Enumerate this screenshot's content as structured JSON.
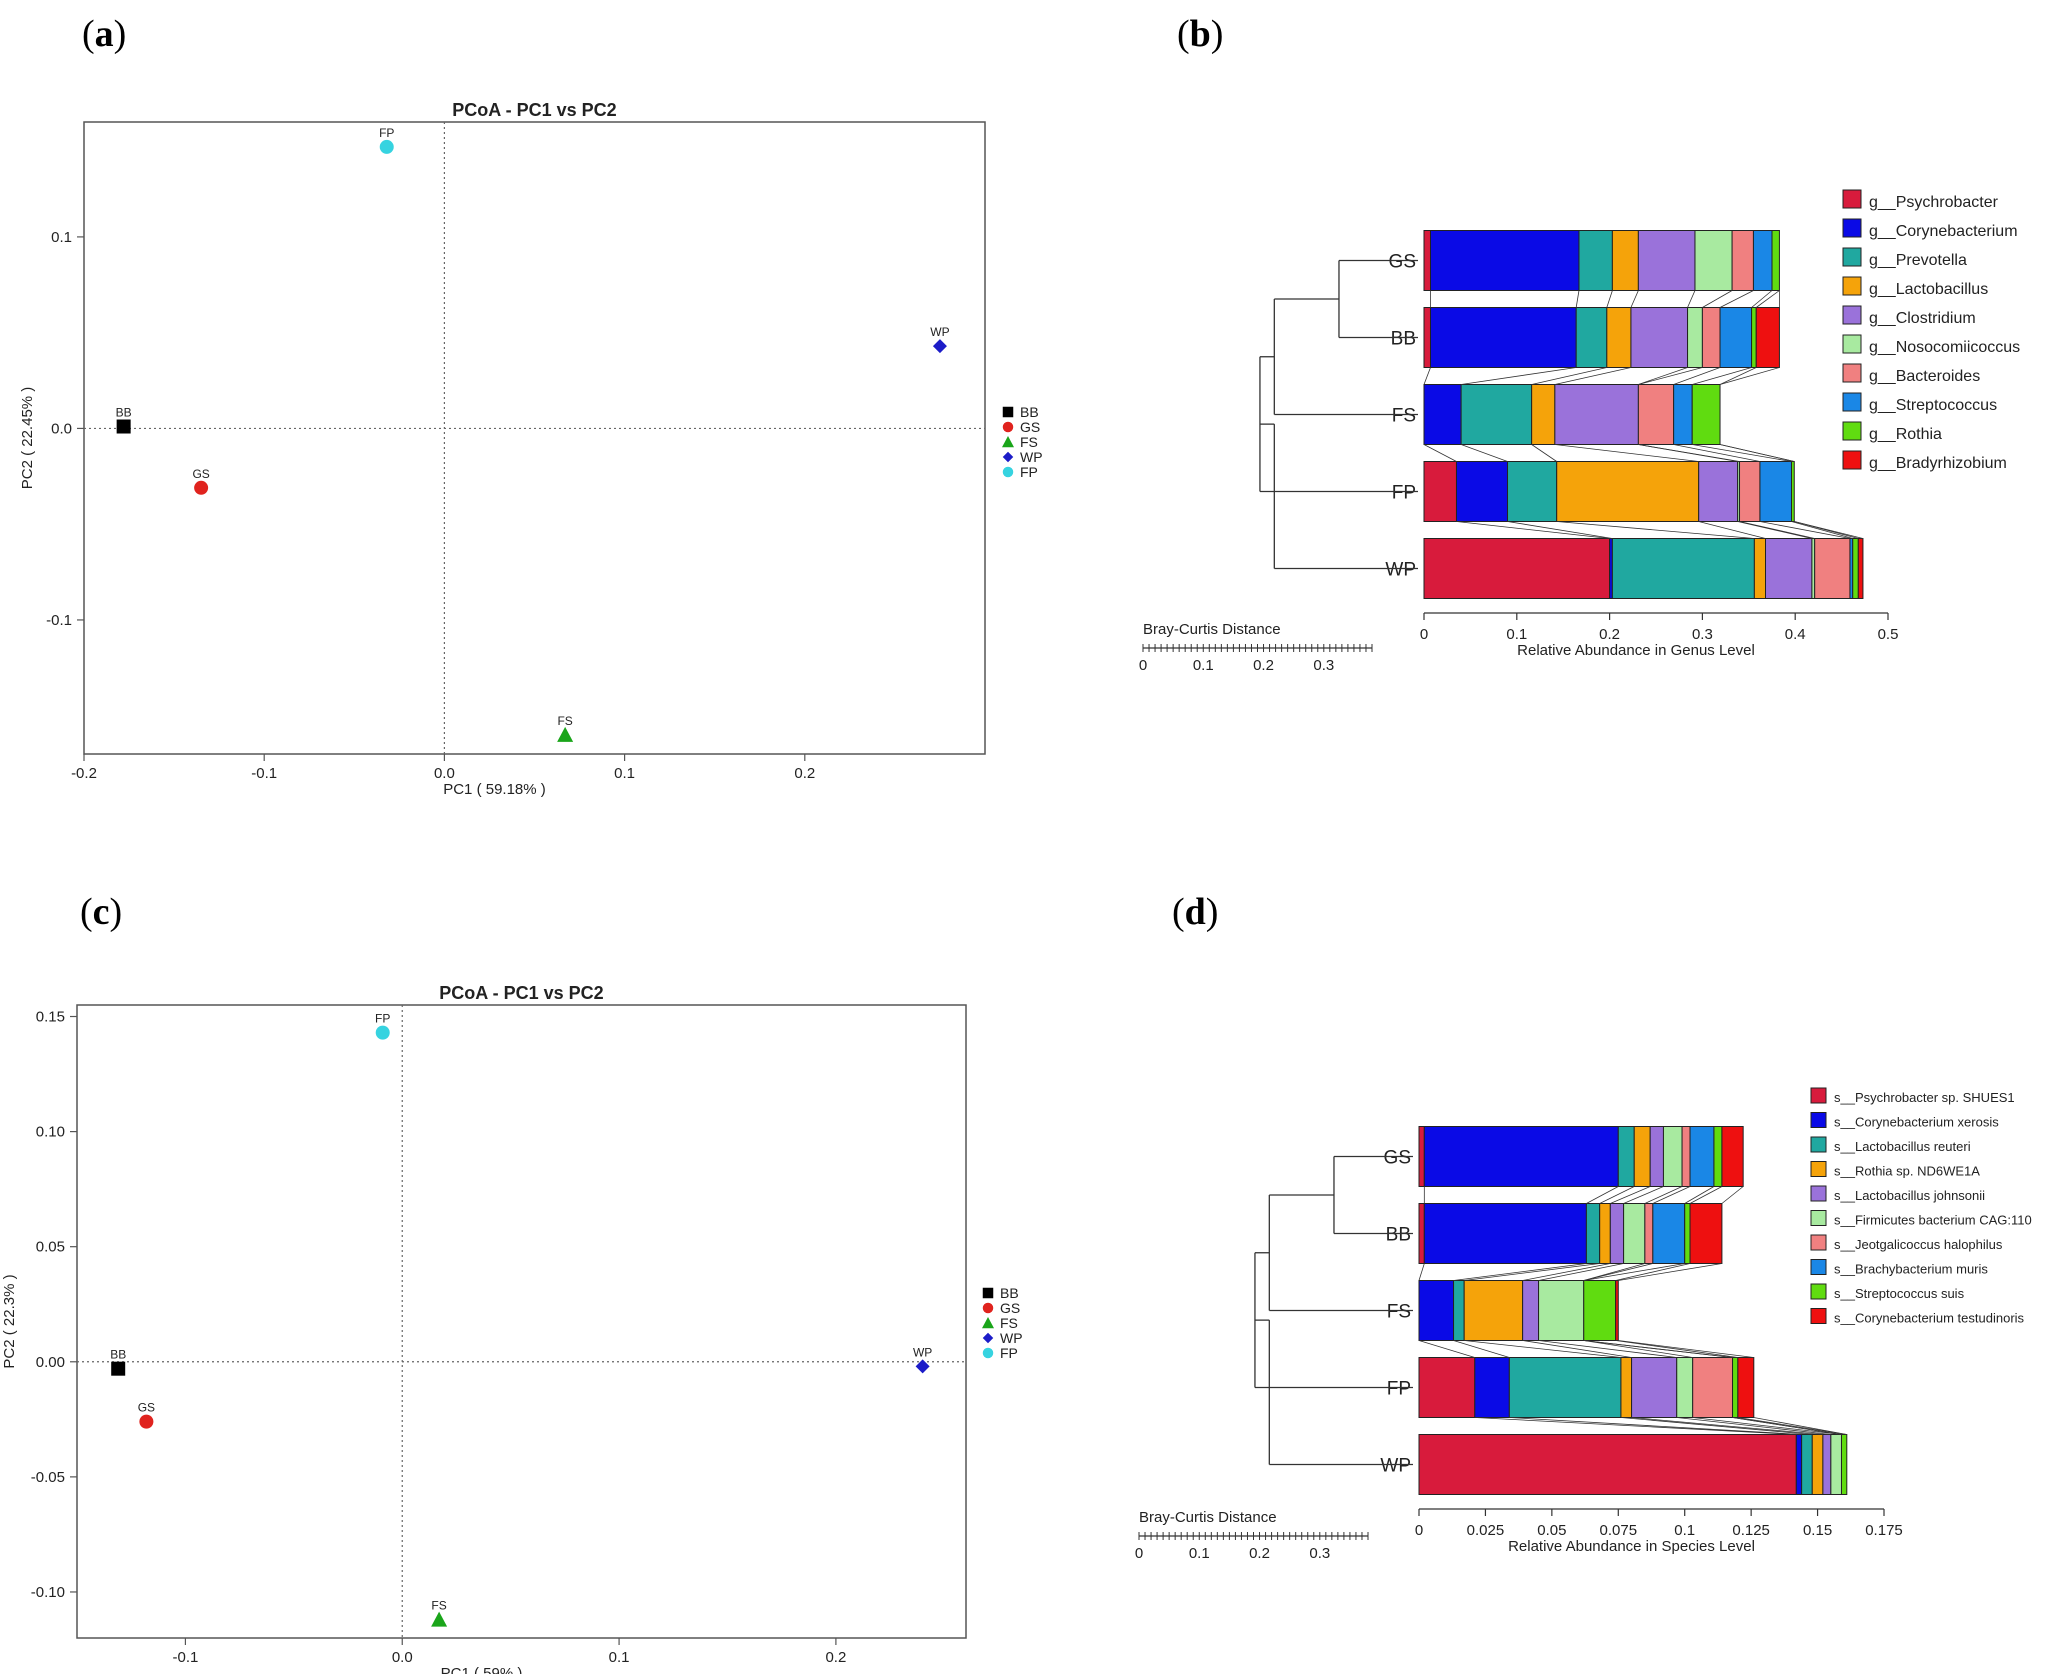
{
  "panel_labels": {
    "a": "a",
    "b": "b",
    "c": "c",
    "d": "d"
  },
  "chart_data": [
    {
      "id": "a",
      "type": "scatter",
      "title": "PCoA - PC1 vs PC2",
      "xlabel": "PC1 ( 59.18% )",
      "ylabel": "PC2 ( 22.45% )",
      "xlim": [
        -0.2,
        0.3
      ],
      "ylim": [
        -0.17,
        0.16
      ],
      "xticks": [
        -0.2,
        -0.1,
        0.0,
        0.1,
        0.2
      ],
      "xtick_labels": [
        "-0.2",
        "-0.1",
        "0.0",
        "0.1",
        "0.2"
      ],
      "yticks": [
        -0.1,
        0.0,
        0.1
      ],
      "ytick_labels": [
        "-0.1",
        "0.0",
        "0.1"
      ],
      "reference_lines": {
        "x": 0,
        "y": 0
      },
      "legend_position": "right",
      "points": [
        {
          "name": "BB",
          "x": -0.178,
          "y": 0.001,
          "color": "#000000",
          "marker": "square"
        },
        {
          "name": "GS",
          "x": -0.135,
          "y": -0.031,
          "color": "#e0231e",
          "marker": "circle"
        },
        {
          "name": "FS",
          "x": 0.067,
          "y": -0.16,
          "color": "#1aa51a",
          "marker": "triangle"
        },
        {
          "name": "WP",
          "x": 0.275,
          "y": 0.043,
          "color": "#1c1cc8",
          "marker": "diamond"
        },
        {
          "name": "FP",
          "x": -0.032,
          "y": 0.147,
          "color": "#36d3e0",
          "marker": "circle"
        }
      ]
    },
    {
      "id": "b",
      "type": "bar",
      "orientation": "horizontal",
      "stacked": true,
      "xlabel": "Relative Abundance in Genus Level",
      "xlim": [
        0,
        0.5
      ],
      "xticks": [
        0,
        0.1,
        0.2,
        0.3,
        0.4,
        0.5
      ],
      "xtick_labels": [
        "0",
        "0.1",
        "0.2",
        "0.3",
        "0.4",
        "0.5"
      ],
      "dendrogram_label": "Bray-Curtis Distance",
      "dendrogram_ticks": [
        0,
        0.1,
        0.2,
        0.3
      ],
      "dendrogram_tick_labels": [
        "0",
        "0.1",
        "0.2",
        "0.3"
      ],
      "dendrogram_max": 0.38,
      "categories": [
        "GS",
        "BB",
        "FS",
        "FP",
        "WP"
      ],
      "legend_position": "top-right",
      "series": [
        {
          "name": "g__Psychrobacter",
          "color": "#d81b3c",
          "values": [
            0.007,
            0.007,
            0.0,
            0.035,
            0.2
          ]
        },
        {
          "name": "g__Corynebacterium",
          "color": "#0a0ae6",
          "values": [
            0.16,
            0.157,
            0.04,
            0.055,
            0.003
          ]
        },
        {
          "name": "g__Prevotella",
          "color": "#20a8a0",
          "values": [
            0.036,
            0.033,
            0.076,
            0.053,
            0.153
          ]
        },
        {
          "name": "g__Lactobacillus",
          "color": "#f5a30a",
          "values": [
            0.028,
            0.026,
            0.025,
            0.153,
            0.012
          ]
        },
        {
          "name": "g__Clostridium",
          "color": "#9a72da",
          "values": [
            0.061,
            0.061,
            0.09,
            0.042,
            0.05
          ]
        },
        {
          "name": "g__Nosocomiicoccus",
          "color": "#a8eaa0",
          "values": [
            0.04,
            0.016,
            0.0,
            0.002,
            0.003
          ]
        },
        {
          "name": "g__Bacteroides",
          "color": "#f08080",
          "values": [
            0.023,
            0.019,
            0.038,
            0.022,
            0.038
          ]
        },
        {
          "name": "g__Streptococcus",
          "color": "#1a87e6",
          "values": [
            0.02,
            0.034,
            0.02,
            0.034,
            0.003
          ]
        },
        {
          "name": "g__Rothia",
          "color": "#60dc10",
          "values": [
            0.008,
            0.005,
            0.03,
            0.003,
            0.006
          ]
        },
        {
          "name": "g__Bradyrhizobium",
          "color": "#ee1010",
          "values": [
            0.0,
            0.025,
            0.0,
            0.0,
            0.005
          ]
        }
      ]
    },
    {
      "id": "c",
      "type": "scatter",
      "title": "PCoA - PC1 vs PC2",
      "xlabel": "PC1 ( 59% )",
      "ylabel": "PC2 ( 22.3% )",
      "xlim": [
        -0.15,
        0.26
      ],
      "ylim": [
        -0.12,
        0.155
      ],
      "xticks": [
        -0.1,
        0.0,
        0.1,
        0.2
      ],
      "xtick_labels": [
        "-0.1",
        "0.0",
        "0.1",
        "0.2"
      ],
      "yticks": [
        -0.1,
        -0.05,
        0.0,
        0.05,
        0.1,
        0.15
      ],
      "ytick_labels": [
        "-0.10",
        "-0.05",
        "0.00",
        "0.05",
        "0.10",
        "0.15"
      ],
      "reference_lines": {
        "x": 0,
        "y": 0
      },
      "legend_position": "right",
      "points": [
        {
          "name": "BB",
          "x": -0.131,
          "y": -0.003,
          "color": "#000000",
          "marker": "square"
        },
        {
          "name": "GS",
          "x": -0.118,
          "y": -0.026,
          "color": "#e0231e",
          "marker": "circle"
        },
        {
          "name": "FS",
          "x": 0.017,
          "y": -0.112,
          "color": "#1aa51a",
          "marker": "triangle"
        },
        {
          "name": "WP",
          "x": 0.24,
          "y": -0.002,
          "color": "#1c1cc8",
          "marker": "diamond"
        },
        {
          "name": "FP",
          "x": -0.009,
          "y": 0.143,
          "color": "#36d3e0",
          "marker": "circle"
        }
      ]
    },
    {
      "id": "d",
      "type": "bar",
      "orientation": "horizontal",
      "stacked": true,
      "xlabel": "Relative Abundance in Species Level",
      "xlim": [
        0,
        0.175
      ],
      "xticks": [
        0,
        0.025,
        0.05,
        0.075,
        0.1,
        0.125,
        0.15,
        0.175
      ],
      "xtick_labels": [
        "0",
        "0.025",
        "0.05",
        "0.075",
        "0.1",
        "0.125",
        "0.15",
        "0.175"
      ],
      "dendrogram_label": "Bray-Curtis Distance",
      "dendrogram_ticks": [
        0,
        0.1,
        0.2,
        0.3
      ],
      "dendrogram_tick_labels": [
        "0",
        "0.1",
        "0.2",
        "0.3"
      ],
      "dendrogram_max": 0.38,
      "categories": [
        "GS",
        "BB",
        "FS",
        "FP",
        "WP"
      ],
      "legend_position": "top-right",
      "series": [
        {
          "name": "s__Psychrobacter sp. SHUES1",
          "color": "#d81b3c",
          "values": [
            0.002,
            0.002,
            0.0,
            0.021,
            0.142
          ]
        },
        {
          "name": "s__Corynebacterium xerosis",
          "color": "#0a0ae6",
          "values": [
            0.073,
            0.061,
            0.013,
            0.013,
            0.002
          ]
        },
        {
          "name": "s__Lactobacillus reuteri",
          "color": "#20a8a0",
          "values": [
            0.006,
            0.005,
            0.004,
            0.042,
            0.004
          ]
        },
        {
          "name": "s__Rothia sp. ND6WE1A",
          "color": "#f5a30a",
          "values": [
            0.006,
            0.004,
            0.022,
            0.004,
            0.004
          ]
        },
        {
          "name": "s__Lactobacillus johnsonii",
          "color": "#9a72da",
          "values": [
            0.005,
            0.005,
            0.006,
            0.017,
            0.003
          ]
        },
        {
          "name": "s__Firmicutes bacterium CAG:110",
          "color": "#a8eaa0",
          "values": [
            0.007,
            0.008,
            0.017,
            0.006,
            0.004
          ]
        },
        {
          "name": "s__Jeotgalicoccus halophilus",
          "color": "#f08080",
          "values": [
            0.003,
            0.003,
            0.0,
            0.015,
            0.0
          ]
        },
        {
          "name": "s__Brachybacterium muris",
          "color": "#1a87e6",
          "values": [
            0.009,
            0.012,
            0.0,
            0.0,
            0.0
          ]
        },
        {
          "name": "s__Streptococcus suis",
          "color": "#60dc10",
          "values": [
            0.003,
            0.002,
            0.012,
            0.002,
            0.002
          ]
        },
        {
          "name": "s__Corynebacterium testudinoris",
          "color": "#ee1010",
          "values": [
            0.008,
            0.012,
            0.001,
            0.006,
            0.0
          ]
        }
      ]
    }
  ]
}
